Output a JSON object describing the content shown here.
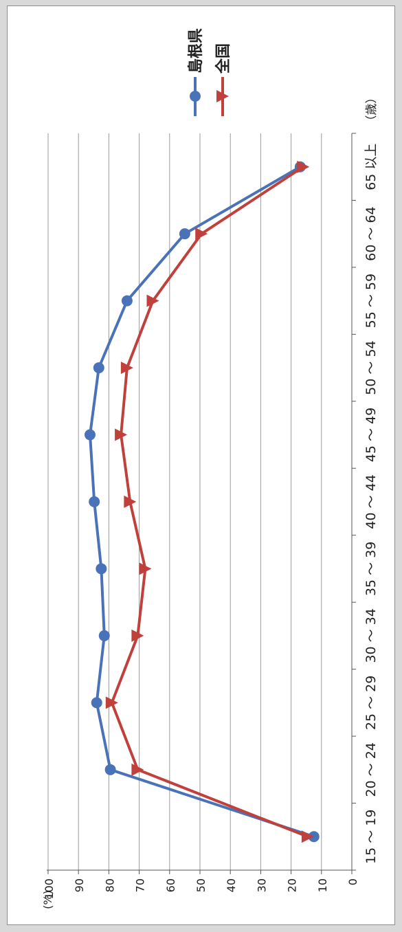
{
  "chart_data": {
    "type": "line",
    "orientation": "rotated-90-clockwise",
    "y_unit": "(%)",
    "x_unit": "（歳）",
    "categories": [
      "15 ～ 19",
      "20 ～ 24",
      "25 ～ 29",
      "30 ～ 34",
      "35 ～ 39",
      "40 ～ 44",
      "45 ～ 49",
      "50 ～ 54",
      "55 ～ 59",
      "60 ～ 64",
      "65 以上"
    ],
    "ylim": [
      0,
      100
    ],
    "yticks": [
      0,
      10,
      20,
      30,
      40,
      50,
      60,
      70,
      80,
      90,
      100
    ],
    "grid": true,
    "legend_position": "top-right",
    "series": [
      {
        "name": "島根県",
        "color": "#4a72b8",
        "marker": "circle",
        "values": [
          12.5,
          79.5,
          84.0,
          81.5,
          82.5,
          84.8,
          86.2,
          83.3,
          74.0,
          55.0,
          17.0
        ]
      },
      {
        "name": "全国",
        "color": "#c0403c",
        "marker": "triangle",
        "values": [
          14.5,
          70.5,
          79.0,
          70.5,
          68.0,
          73.0,
          76.0,
          74.0,
          65.5,
          49.5,
          16.0
        ]
      }
    ]
  }
}
